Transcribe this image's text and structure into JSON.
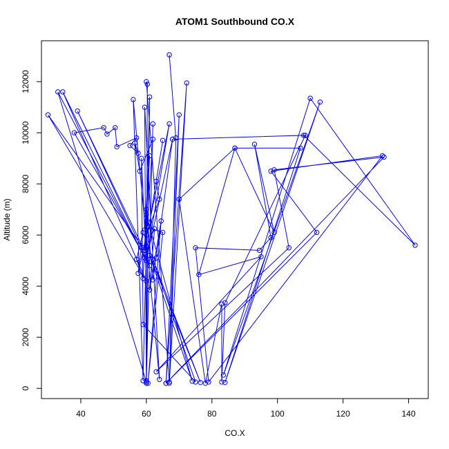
{
  "chart_data": {
    "type": "line",
    "title": "ATOM1 Southbound CO.X",
    "xlabel": "CO.X",
    "ylabel": "Altitude (m)",
    "xlim": [
      28,
      146
    ],
    "ylim": [
      -400,
      13600
    ],
    "xticks": [
      40,
      60,
      80,
      100,
      120,
      140
    ],
    "yticks": [
      0,
      2000,
      4000,
      6000,
      8000,
      10000,
      12000
    ],
    "grid": false,
    "legend": "none",
    "markers": "open-circle",
    "color": "#0000ff",
    "series": [
      {
        "points": [
          [
            67.0,
            13050
          ],
          [
            69.0,
            9800
          ],
          [
            67.0,
            200
          ],
          [
            72.3,
            11950
          ],
          [
            66.0,
            200
          ],
          [
            70.0,
            10700
          ],
          [
            67.0,
            250
          ],
          [
            60.0,
            12000
          ],
          [
            60.3,
            11900
          ],
          [
            60.0,
            200
          ],
          [
            62.0,
            10350
          ],
          [
            60.0,
            300
          ],
          [
            61.0,
            11400
          ],
          [
            59.0,
            300
          ],
          [
            56.0,
            11300
          ],
          [
            64.0,
            350
          ],
          [
            59.5,
            11000
          ],
          [
            60.0,
            250
          ],
          [
            33.0,
            11600
          ],
          [
            59.5,
            5100
          ],
          [
            34.5,
            11600
          ],
          [
            60.0,
            4200
          ],
          [
            30.0,
            10700
          ],
          [
            59.0,
            5500
          ],
          [
            39.0,
            10850
          ],
          [
            61.0,
            4800
          ],
          [
            38.0,
            10000
          ],
          [
            47.0,
            10200
          ],
          [
            48.0,
            9950
          ],
          [
            50.5,
            10200
          ],
          [
            51.0,
            9450
          ],
          [
            57.0,
            9800
          ],
          [
            55.0,
            9500
          ],
          [
            57.5,
            9200
          ],
          [
            56.5,
            9600
          ],
          [
            58.0,
            8500
          ],
          [
            62.0,
            9750
          ],
          [
            60.0,
            6000
          ],
          [
            64.0,
            7400
          ],
          [
            63.0,
            8100
          ],
          [
            65.0,
            9700
          ],
          [
            61.0,
            6500
          ],
          [
            67.0,
            10350
          ],
          [
            60.0,
            5000
          ],
          [
            68.0,
            9750
          ],
          [
            108.0,
            9900
          ],
          [
            142.0,
            5600
          ],
          [
            110.0,
            11350
          ],
          [
            83.5,
            520
          ],
          [
            113.0,
            11200
          ],
          [
            84.0,
            230
          ],
          [
            107.0,
            9400
          ],
          [
            87.0,
            9400
          ],
          [
            99.0,
            6100
          ],
          [
            93.0,
            9550
          ],
          [
            98.0,
            5900
          ],
          [
            94.5,
            5400
          ],
          [
            75.0,
            5500
          ],
          [
            79.0,
            250
          ],
          [
            132.0,
            9100
          ],
          [
            98.0,
            8500
          ],
          [
            112.0,
            6100
          ],
          [
            66.0,
            200
          ],
          [
            132.5,
            9050
          ],
          [
            99.0,
            8550
          ],
          [
            103.5,
            5500
          ],
          [
            63.0,
            650
          ],
          [
            95.0,
            5150
          ],
          [
            76.0,
            4450
          ],
          [
            87.0,
            9400
          ],
          [
            70.0,
            7400
          ],
          [
            78.0,
            200
          ],
          [
            83.0,
            3300
          ],
          [
            83.0,
            250
          ],
          [
            84.0,
            3350
          ],
          [
            108.5,
            9900
          ],
          [
            68.0,
            9750
          ],
          [
            63.0,
            5100
          ],
          [
            62.0,
            4250
          ],
          [
            60.0,
            7000
          ],
          [
            59.0,
            4300
          ],
          [
            57.0,
            5050
          ],
          [
            59.0,
            6100
          ],
          [
            57.5,
            4500
          ],
          [
            60.5,
            6300
          ],
          [
            65.0,
            6100
          ],
          [
            60.5,
            200
          ],
          [
            64.5,
            6550
          ],
          [
            61.0,
            3850
          ],
          [
            62.5,
            6250
          ],
          [
            59.5,
            5400
          ],
          [
            61.0,
            9100
          ],
          [
            59.5,
            6200
          ],
          [
            58.5,
            9000
          ],
          [
            59.0,
            2500
          ],
          [
            75.0,
            250
          ],
          [
            62.0,
            5050
          ],
          [
            76.5,
            230
          ],
          [
            61.0,
            5200
          ],
          [
            74.0,
            280
          ],
          [
            60.0,
            6800
          ]
        ]
      }
    ]
  }
}
